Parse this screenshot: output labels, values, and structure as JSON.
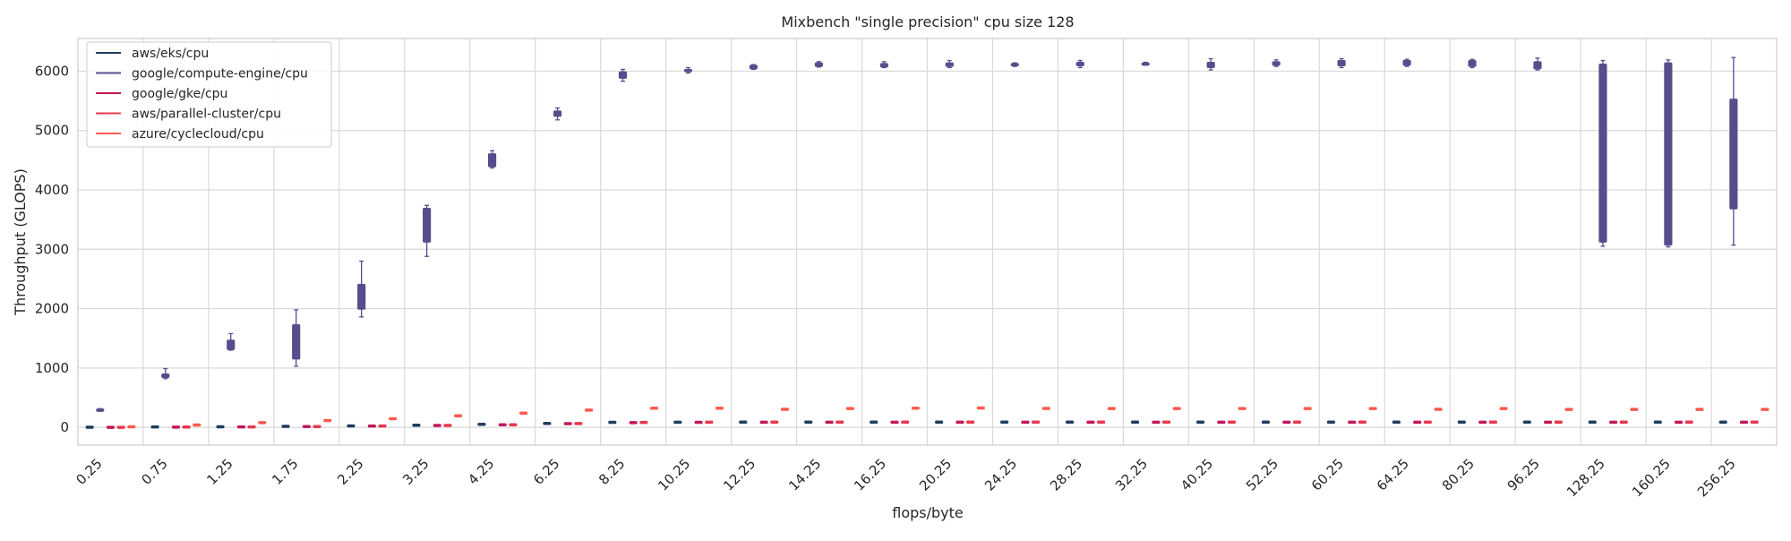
{
  "chart_data": {
    "type": "box",
    "title": "Mixbench \"single precision\" cpu size 128",
    "xlabel": "flops/byte",
    "ylabel": "Throughput (GLOPS)",
    "ylim": [
      -300,
      6550
    ],
    "yticks": [
      0,
      1000,
      2000,
      3000,
      4000,
      5000,
      6000
    ],
    "grid": true,
    "legend_position": "top-left",
    "categories": [
      "0.25",
      "0.75",
      "1.25",
      "1.75",
      "2.25",
      "3.25",
      "4.25",
      "6.25",
      "8.25",
      "10.25",
      "12.25",
      "14.25",
      "16.25",
      "20.25",
      "24.25",
      "28.25",
      "32.25",
      "40.25",
      "52.25",
      "60.25",
      "64.25",
      "80.25",
      "96.25",
      "128.25",
      "160.25",
      "256.25"
    ],
    "series": [
      {
        "name": "aws/eks/cpu",
        "color": "#1f3d5f",
        "boxes": [
          [
            -2,
            0,
            2,
            4,
            6
          ],
          [
            3,
            5,
            7,
            9,
            11
          ],
          [
            6,
            8,
            10,
            12,
            14
          ],
          [
            12,
            14,
            16,
            18,
            20
          ],
          [
            20,
            23,
            25,
            27,
            30
          ],
          [
            28,
            32,
            35,
            38,
            40
          ],
          [
            45,
            48,
            50,
            53,
            56
          ],
          [
            60,
            63,
            66,
            69,
            72
          ],
          [
            78,
            81,
            84,
            86,
            88
          ],
          [
            82,
            84,
            86,
            88,
            90
          ],
          [
            84,
            86,
            88,
            89,
            91
          ],
          [
            84,
            86,
            88,
            89,
            91
          ],
          [
            85,
            87,
            88,
            90,
            92
          ],
          [
            85,
            87,
            88,
            90,
            92
          ],
          [
            85,
            87,
            88,
            90,
            92
          ],
          [
            85,
            87,
            88,
            90,
            92
          ],
          [
            85,
            87,
            88,
            90,
            92
          ],
          [
            85,
            87,
            88,
            90,
            92
          ],
          [
            85,
            87,
            88,
            90,
            92
          ],
          [
            85,
            87,
            88,
            90,
            92
          ],
          [
            85,
            87,
            88,
            90,
            92
          ],
          [
            85,
            87,
            88,
            90,
            92
          ],
          [
            85,
            87,
            88,
            90,
            92
          ],
          [
            85,
            87,
            88,
            90,
            92
          ],
          [
            85,
            87,
            88,
            90,
            92
          ],
          [
            85,
            87,
            88,
            90,
            92
          ]
        ]
      },
      {
        "name": "google/compute-engine/cpu",
        "color": "#574d8c",
        "boxes": [
          [
            270,
            280,
            290,
            300,
            315
          ],
          [
            820,
            840,
            870,
            900,
            990
          ],
          [
            1300,
            1310,
            1380,
            1470,
            1580
          ],
          [
            1030,
            1150,
            1450,
            1730,
            1980
          ],
          [
            1860,
            1990,
            2200,
            2410,
            2800
          ],
          [
            2880,
            3120,
            3400,
            3690,
            3740
          ],
          [
            4370,
            4390,
            4500,
            4610,
            4660
          ],
          [
            5180,
            5240,
            5290,
            5330,
            5380
          ],
          [
            5830,
            5880,
            5950,
            5990,
            6030
          ],
          [
            5970,
            5990,
            6010,
            6030,
            6060
          ],
          [
            6030,
            6040,
            6070,
            6100,
            6110
          ],
          [
            6070,
            6080,
            6110,
            6140,
            6160
          ],
          [
            6060,
            6070,
            6100,
            6130,
            6160
          ],
          [
            6060,
            6080,
            6110,
            6140,
            6180
          ],
          [
            6080,
            6090,
            6110,
            6130,
            6140
          ],
          [
            6060,
            6090,
            6120,
            6150,
            6180
          ],
          [
            6100,
            6110,
            6120,
            6140,
            6150
          ],
          [
            6020,
            6060,
            6110,
            6150,
            6210
          ],
          [
            6080,
            6100,
            6130,
            6160,
            6190
          ],
          [
            6060,
            6090,
            6130,
            6180,
            6210
          ],
          [
            6080,
            6100,
            6140,
            6180,
            6200
          ],
          [
            6060,
            6080,
            6130,
            6180,
            6200
          ],
          [
            6020,
            6040,
            6100,
            6160,
            6220
          ],
          [
            3050,
            3120,
            6100,
            6120,
            6180
          ],
          [
            3040,
            3070,
            6100,
            6140,
            6190
          ],
          [
            3070,
            3680,
            4800,
            5530,
            6230
          ]
        ]
      },
      {
        "name": "google/gke/cpu",
        "color": "#c2185b",
        "boxes": [
          [
            -4,
            -2,
            0,
            2,
            4
          ],
          [
            0,
            2,
            4,
            6,
            8
          ],
          [
            3,
            5,
            7,
            9,
            11
          ],
          [
            10,
            12,
            14,
            16,
            18
          ],
          [
            18,
            20,
            22,
            24,
            26
          ],
          [
            28,
            30,
            32,
            34,
            36
          ],
          [
            40,
            42,
            44,
            46,
            48
          ],
          [
            58,
            60,
            62,
            64,
            66
          ],
          [
            75,
            78,
            80,
            82,
            84
          ],
          [
            80,
            82,
            84,
            86,
            88
          ],
          [
            82,
            84,
            86,
            88,
            90
          ],
          [
            82,
            84,
            86,
            88,
            90
          ],
          [
            82,
            84,
            86,
            88,
            90
          ],
          [
            82,
            84,
            86,
            88,
            90
          ],
          [
            82,
            84,
            86,
            88,
            90
          ],
          [
            82,
            84,
            86,
            88,
            90
          ],
          [
            82,
            84,
            86,
            88,
            90
          ],
          [
            82,
            84,
            86,
            88,
            90
          ],
          [
            82,
            84,
            86,
            88,
            90
          ],
          [
            82,
            84,
            86,
            88,
            90
          ],
          [
            82,
            84,
            86,
            88,
            90
          ],
          [
            82,
            84,
            86,
            88,
            90
          ],
          [
            82,
            84,
            86,
            88,
            90
          ],
          [
            82,
            84,
            86,
            88,
            90
          ],
          [
            82,
            84,
            86,
            88,
            90
          ],
          [
            82,
            84,
            86,
            88,
            90
          ]
        ]
      },
      {
        "name": "aws/parallel-cluster/cpu",
        "color": "#e8384f",
        "boxes": [
          [
            -4,
            -2,
            0,
            2,
            4
          ],
          [
            1,
            3,
            5,
            7,
            9
          ],
          [
            4,
            6,
            8,
            10,
            12
          ],
          [
            10,
            12,
            14,
            16,
            18
          ],
          [
            18,
            20,
            22,
            24,
            26
          ],
          [
            28,
            30,
            32,
            34,
            36
          ],
          [
            40,
            42,
            44,
            46,
            48
          ],
          [
            60,
            62,
            64,
            66,
            68
          ],
          [
            78,
            80,
            82,
            84,
            86
          ],
          [
            82,
            84,
            86,
            88,
            90
          ],
          [
            84,
            86,
            88,
            90,
            92
          ],
          [
            84,
            86,
            88,
            90,
            92
          ],
          [
            84,
            86,
            88,
            90,
            92
          ],
          [
            84,
            86,
            88,
            90,
            92
          ],
          [
            84,
            86,
            88,
            90,
            92
          ],
          [
            84,
            86,
            88,
            90,
            92
          ],
          [
            84,
            86,
            88,
            90,
            92
          ],
          [
            84,
            86,
            88,
            90,
            92
          ],
          [
            84,
            86,
            88,
            90,
            92
          ],
          [
            84,
            86,
            88,
            90,
            92
          ],
          [
            84,
            86,
            88,
            90,
            92
          ],
          [
            84,
            86,
            88,
            90,
            92
          ],
          [
            84,
            86,
            88,
            90,
            92
          ],
          [
            84,
            86,
            88,
            90,
            92
          ],
          [
            84,
            86,
            88,
            90,
            92
          ],
          [
            84,
            86,
            88,
            90,
            92
          ]
        ]
      },
      {
        "name": "azure/cyclecloud/cpu",
        "color": "#ff5a4d",
        "boxes": [
          [
            5,
            8,
            10,
            12,
            15
          ],
          [
            35,
            38,
            40,
            42,
            45
          ],
          [
            75,
            78,
            80,
            82,
            85
          ],
          [
            110,
            113,
            115,
            117,
            120
          ],
          [
            140,
            143,
            145,
            147,
            150
          ],
          [
            190,
            193,
            195,
            197,
            200
          ],
          [
            235,
            238,
            240,
            242,
            245
          ],
          [
            285,
            288,
            290,
            292,
            295
          ],
          [
            318,
            321,
            323,
            325,
            328
          ],
          [
            318,
            321,
            323,
            325,
            328
          ],
          [
            298,
            301,
            303,
            305,
            308
          ],
          [
            312,
            315,
            317,
            319,
            322
          ],
          [
            318,
            321,
            323,
            325,
            328
          ],
          [
            322,
            325,
            327,
            329,
            332
          ],
          [
            313,
            316,
            318,
            320,
            323
          ],
          [
            312,
            315,
            317,
            319,
            322
          ],
          [
            312,
            315,
            317,
            319,
            322
          ],
          [
            312,
            315,
            317,
            319,
            322
          ],
          [
            312,
            315,
            317,
            319,
            322
          ],
          [
            312,
            315,
            317,
            319,
            322
          ],
          [
            298,
            301,
            303,
            305,
            308
          ],
          [
            312,
            315,
            317,
            319,
            322
          ],
          [
            296,
            299,
            301,
            303,
            306
          ],
          [
            296,
            299,
            301,
            303,
            306
          ],
          [
            296,
            299,
            301,
            303,
            306
          ],
          [
            296,
            299,
            301,
            303,
            306
          ]
        ]
      }
    ]
  }
}
